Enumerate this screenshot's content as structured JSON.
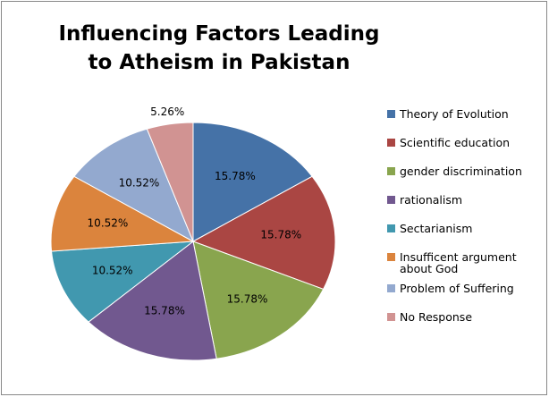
{
  "chart_data": {
    "type": "pie",
    "title": "Influencing Factors Leading to Atheism in Pakistan",
    "categories": [
      "Theory of Evolution",
      "Scientific education",
      "gender discrimination",
      "rationalism",
      "Sectarianism",
      "Insufficent argument about God",
      "Problem of Suffering",
      "No Response"
    ],
    "values": [
      15.78,
      15.78,
      15.78,
      15.78,
      10.52,
      10.52,
      10.52,
      5.26
    ],
    "value_labels": [
      "15.78%",
      "15.78%",
      "15.78%",
      "15.78%",
      "10.52%",
      "10.52%",
      "10.52%",
      "5.26%"
    ],
    "colors": [
      "#4572a7",
      "#aa4643",
      "#89a54e",
      "#71588f",
      "#4198af",
      "#db843d",
      "#93a9cf",
      "#d19392"
    ],
    "legend": "right"
  }
}
